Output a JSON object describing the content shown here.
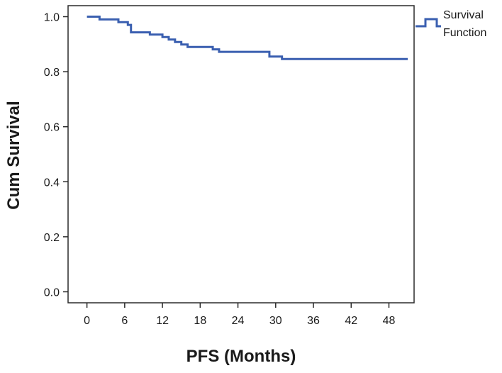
{
  "chart_data": {
    "type": "line",
    "line_shape": "step",
    "xlabel": "PFS (Months)",
    "ylabel": "Cum Survival",
    "xlim": [
      -3,
      52
    ],
    "ylim": [
      -0.04,
      1.04
    ],
    "x_ticks": [
      0,
      6,
      12,
      18,
      24,
      30,
      36,
      42,
      48
    ],
    "y_ticks": [
      0.0,
      0.2,
      0.4,
      0.6,
      0.8,
      1.0
    ],
    "y_tick_labels": [
      "0.0",
      "0.2",
      "0.4",
      "0.6",
      "0.8",
      "1.0"
    ],
    "grid": false,
    "legend_position": "top-right-outside",
    "series": [
      {
        "name": "Survival Function",
        "color": "#3a5fb0",
        "points": [
          [
            0,
            1.0
          ],
          [
            2,
            0.99
          ],
          [
            5,
            0.98
          ],
          [
            6.5,
            0.97
          ],
          [
            7,
            0.943
          ],
          [
            10,
            0.935
          ],
          [
            12,
            0.926
          ],
          [
            13,
            0.917
          ],
          [
            14,
            0.908
          ],
          [
            15,
            0.899
          ],
          [
            16,
            0.89
          ],
          [
            20,
            0.881
          ],
          [
            21,
            0.872
          ],
          [
            29,
            0.855
          ],
          [
            31,
            0.846
          ],
          [
            51,
            0.846
          ]
        ]
      }
    ]
  }
}
